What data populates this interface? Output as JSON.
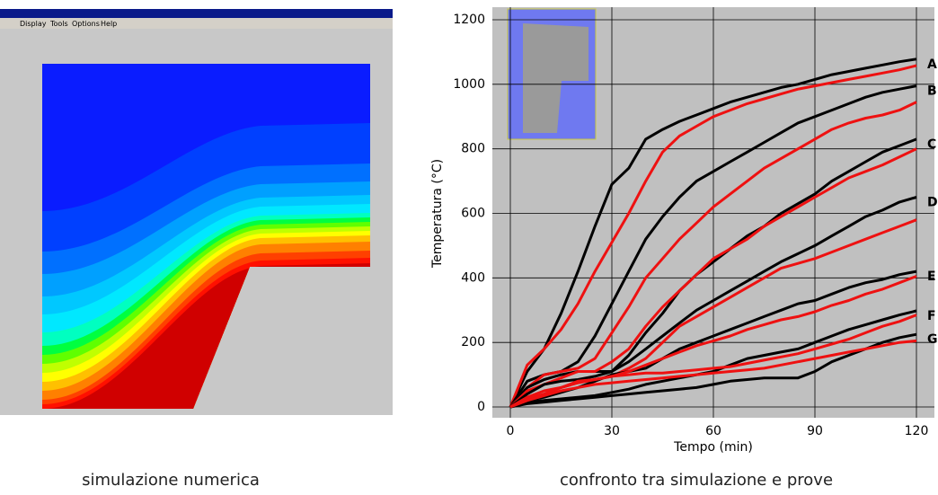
{
  "window": {
    "menu": [
      "Display",
      "Tools",
      "Options",
      "Help"
    ]
  },
  "captions": [
    "simulazione numerica",
    "confronto tra simulazione e prove"
  ],
  "chart_data": {
    "type": "line",
    "x_label": "Tempo (min)",
    "y_label": "Temperatura (°C)",
    "x": [
      0,
      5,
      10,
      15,
      20,
      25,
      30,
      35,
      40,
      45,
      50,
      55,
      60,
      65,
      70,
      75,
      80,
      85,
      90,
      95,
      100,
      105,
      110,
      115,
      120
    ],
    "xlim": [
      0,
      120
    ],
    "xticks": [
      0,
      30,
      60,
      90,
      120
    ],
    "ylim": [
      0,
      1200
    ],
    "yticks": [
      0,
      200,
      400,
      600,
      800,
      1000,
      1200
    ],
    "grid": true,
    "labels": [
      "A",
      "B",
      "C",
      "D",
      "E",
      "F",
      "G"
    ],
    "series": [
      {
        "color": "#000000",
        "values": [
          0,
          110,
          180,
          290,
          420,
          560,
          690,
          740,
          830,
          860,
          885,
          905,
          925,
          945,
          960,
          975,
          990,
          1000,
          1015,
          1030,
          1040,
          1050,
          1060,
          1070,
          1078
        ]
      },
      {
        "color": "#ee1111",
        "values": [
          0,
          130,
          180,
          240,
          320,
          420,
          510,
          600,
          700,
          790,
          840,
          870,
          900,
          920,
          940,
          955,
          970,
          985,
          995,
          1005,
          1015,
          1025,
          1035,
          1045,
          1058
        ]
      },
      {
        "color": "#000000",
        "values": [
          0,
          80,
          100,
          110,
          140,
          220,
          320,
          420,
          520,
          590,
          650,
          700,
          730,
          760,
          790,
          820,
          850,
          880,
          900,
          920,
          940,
          960,
          975,
          985,
          995
        ]
      },
      {
        "color": "#ee1111",
        "values": [
          0,
          60,
          100,
          110,
          120,
          150,
          230,
          310,
          400,
          460,
          520,
          570,
          620,
          660,
          700,
          740,
          770,
          800,
          830,
          860,
          880,
          895,
          905,
          920,
          945
        ]
      },
      {
        "color": "#000000",
        "values": [
          0,
          60,
          85,
          100,
          110,
          110,
          110,
          160,
          230,
          290,
          360,
          410,
          450,
          490,
          530,
          560,
          600,
          630,
          660,
          700,
          730,
          760,
          790,
          810,
          830
        ]
      },
      {
        "color": "#ee1111",
        "values": [
          0,
          50,
          70,
          90,
          110,
          110,
          140,
          180,
          250,
          310,
          360,
          410,
          460,
          490,
          520,
          560,
          590,
          620,
          650,
          680,
          710,
          730,
          750,
          775,
          800
        ]
      },
      {
        "color": "#000000",
        "values": [
          0,
          40,
          70,
          80,
          85,
          95,
          110,
          140,
          180,
          220,
          260,
          300,
          330,
          360,
          390,
          420,
          450,
          475,
          500,
          530,
          560,
          590,
          610,
          635,
          650
        ]
      },
      {
        "color": "#ee1111",
        "values": [
          0,
          30,
          50,
          60,
          75,
          85,
          95,
          120,
          150,
          200,
          250,
          280,
          310,
          340,
          370,
          400,
          430,
          445,
          460,
          480,
          500,
          520,
          540,
          560,
          580
        ]
      },
      {
        "color": "#000000",
        "values": [
          0,
          20,
          30,
          45,
          60,
          80,
          100,
          110,
          120,
          150,
          180,
          200,
          220,
          240,
          260,
          280,
          300,
          320,
          330,
          350,
          370,
          385,
          395,
          410,
          420
        ]
      },
      {
        "color": "#ee1111",
        "values": [
          0,
          20,
          40,
          60,
          80,
          85,
          95,
          110,
          130,
          150,
          170,
          190,
          205,
          220,
          240,
          255,
          270,
          280,
          295,
          315,
          330,
          350,
          365,
          385,
          405
        ]
      },
      {
        "color": "#000000",
        "values": [
          0,
          15,
          20,
          25,
          30,
          35,
          45,
          55,
          70,
          80,
          90,
          100,
          110,
          130,
          150,
          160,
          170,
          180,
          200,
          220,
          240,
          255,
          270,
          285,
          298
        ]
      },
      {
        "color": "#ee1111",
        "values": [
          0,
          25,
          40,
          60,
          75,
          85,
          95,
          100,
          105,
          105,
          110,
          115,
          120,
          125,
          135,
          145,
          155,
          165,
          180,
          195,
          210,
          230,
          250,
          265,
          285
        ]
      },
      {
        "color": "#000000",
        "values": [
          0,
          10,
          15,
          20,
          25,
          30,
          35,
          40,
          45,
          50,
          55,
          60,
          70,
          80,
          85,
          90,
          90,
          90,
          110,
          140,
          160,
          180,
          200,
          215,
          225
        ]
      },
      {
        "color": "#ee1111",
        "values": [
          0,
          20,
          35,
          50,
          60,
          70,
          75,
          80,
          85,
          90,
          95,
          100,
          105,
          110,
          115,
          120,
          130,
          140,
          150,
          160,
          170,
          180,
          190,
          200,
          205
        ]
      }
    ]
  }
}
